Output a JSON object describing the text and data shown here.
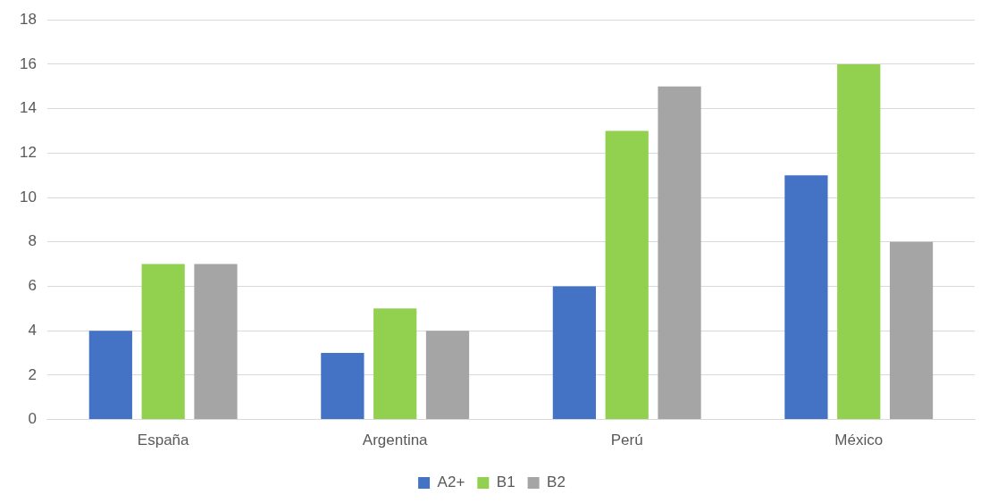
{
  "chart_data": {
    "type": "bar",
    "categories": [
      "España",
      "Argentina",
      "Perú",
      "México"
    ],
    "series": [
      {
        "name": "A2+",
        "color": "#4472c4",
        "values": [
          4,
          3,
          6,
          11
        ]
      },
      {
        "name": "B1",
        "color": "#92d050",
        "values": [
          7,
          5,
          13,
          16
        ]
      },
      {
        "name": "B2",
        "color": "#a5a5a5",
        "values": [
          7,
          4,
          15,
          8
        ]
      }
    ],
    "ylim": [
      0,
      18
    ],
    "yticks": [
      0,
      2,
      4,
      6,
      8,
      10,
      12,
      14,
      16,
      18
    ],
    "grid": "y",
    "legend": "bottom"
  }
}
